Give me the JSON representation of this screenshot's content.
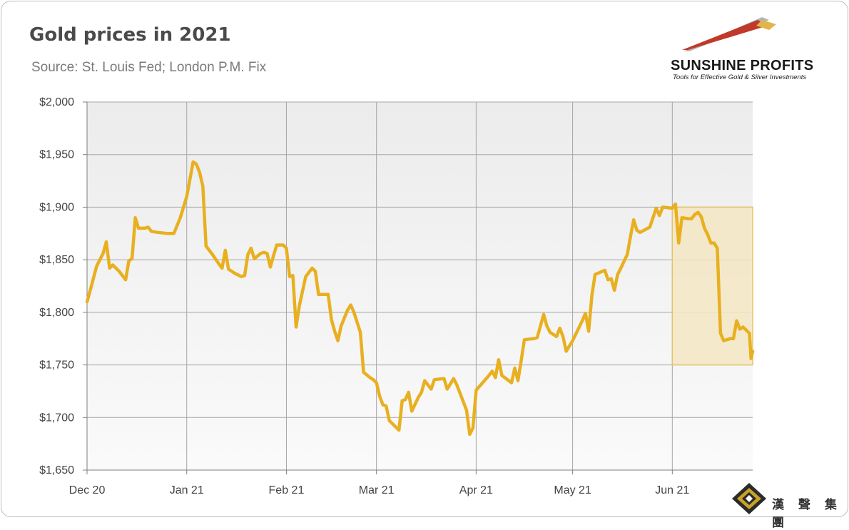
{
  "title": "Gold prices in 2021",
  "subtitle": "Source: St. Louis Fed; London P.M. Fix",
  "logo": {
    "name": "SUNSHINE PROFITS",
    "tagline": "Tools for Effective Gold & Silver Investments"
  },
  "watermark": {
    "text": "漢 聲 集 團"
  },
  "colors": {
    "line": "#e8b020",
    "highlight_fill": "#f5e6c4",
    "highlight_border": "#e3c46a",
    "plot_bg_top": "#ececec",
    "plot_bg_bottom": "#fafafa",
    "grid": "#a6a6a6"
  },
  "chart_data": {
    "type": "line",
    "x_unit": "days since Dec 1, 2020",
    "y_axis": {
      "range": [
        1650,
        2000
      ],
      "step": 50,
      "tick_labels": [
        "$1,650",
        "$1,700",
        "$1,750",
        "$1,800",
        "$1,850",
        "$1,900",
        "$1,950",
        "$2,000"
      ]
    },
    "x_axis": {
      "range": [
        1,
        208
      ],
      "ticks": [
        {
          "label": "Dec 20",
          "day": 1
        },
        {
          "label": "Jan 21",
          "day": 32
        },
        {
          "label": "Feb 21",
          "day": 63
        },
        {
          "label": "Mar 21",
          "day": 91
        },
        {
          "label": "Apr 21",
          "day": 122
        },
        {
          "label": "May 21",
          "day": 152
        },
        {
          "label": "Jun 21",
          "day": 183
        }
      ]
    },
    "grid": true,
    "highlight": {
      "x_start": 183,
      "x_end": 208,
      "y_start": 1750,
      "y_end": 1900
    },
    "series": [
      {
        "values": [
          [
            1,
            1810
          ],
          [
            2,
            1821
          ],
          [
            4,
            1844
          ],
          [
            6,
            1856
          ],
          [
            7,
            1867
          ],
          [
            8,
            1842
          ],
          [
            9,
            1845
          ],
          [
            11,
            1839
          ],
          [
            13,
            1831
          ],
          [
            14,
            1849
          ],
          [
            15,
            1851
          ],
          [
            16,
            1890
          ],
          [
            17,
            1880
          ],
          [
            19,
            1880
          ],
          [
            20,
            1881
          ],
          [
            21,
            1877
          ],
          [
            23,
            1876
          ],
          [
            26,
            1875
          ],
          [
            28,
            1875
          ],
          [
            30,
            1890
          ],
          [
            32,
            1910
          ],
          [
            34,
            1943
          ],
          [
            35,
            1941
          ],
          [
            36,
            1933
          ],
          [
            37,
            1920
          ],
          [
            38,
            1863
          ],
          [
            40,
            1855
          ],
          [
            42,
            1846
          ],
          [
            43,
            1842
          ],
          [
            44,
            1859
          ],
          [
            45,
            1841
          ],
          [
            47,
            1837
          ],
          [
            49,
            1834
          ],
          [
            50,
            1835
          ],
          [
            51,
            1855
          ],
          [
            52,
            1861
          ],
          [
            53,
            1851
          ],
          [
            55,
            1856
          ],
          [
            56,
            1857
          ],
          [
            57,
            1856
          ],
          [
            58,
            1843
          ],
          [
            59,
            1854
          ],
          [
            60,
            1864
          ],
          [
            62,
            1864
          ],
          [
            63,
            1861
          ],
          [
            64,
            1834
          ],
          [
            65,
            1835
          ],
          [
            66,
            1786
          ],
          [
            67,
            1806
          ],
          [
            69,
            1834
          ],
          [
            71,
            1842
          ],
          [
            72,
            1839
          ],
          [
            73,
            1817
          ],
          [
            76,
            1817
          ],
          [
            77,
            1793
          ],
          [
            78,
            1782
          ],
          [
            79,
            1773
          ],
          [
            80,
            1787
          ],
          [
            82,
            1802
          ],
          [
            83,
            1807
          ],
          [
            84,
            1800
          ],
          [
            86,
            1781
          ],
          [
            87,
            1743
          ],
          [
            89,
            1738
          ],
          [
            90,
            1736
          ],
          [
            91,
            1733
          ],
          [
            92,
            1720
          ],
          [
            93,
            1712
          ],
          [
            94,
            1711
          ],
          [
            95,
            1697
          ],
          [
            97,
            1691
          ],
          [
            98,
            1688
          ],
          [
            99,
            1716
          ],
          [
            100,
            1717
          ],
          [
            101,
            1724
          ],
          [
            102,
            1706
          ],
          [
            104,
            1719
          ],
          [
            105,
            1724
          ],
          [
            106,
            1735
          ],
          [
            108,
            1727
          ],
          [
            109,
            1736
          ],
          [
            112,
            1737
          ],
          [
            113,
            1727
          ],
          [
            115,
            1737
          ],
          [
            116,
            1731
          ],
          [
            119,
            1707
          ],
          [
            120,
            1684
          ],
          [
            121,
            1690
          ],
          [
            122,
            1726
          ],
          [
            124,
            1733
          ],
          [
            126,
            1740
          ],
          [
            127,
            1744
          ],
          [
            128,
            1738
          ],
          [
            129,
            1755
          ],
          [
            130,
            1740
          ],
          [
            133,
            1733
          ],
          [
            134,
            1747
          ],
          [
            135,
            1735
          ],
          [
            136,
            1754
          ],
          [
            137,
            1774
          ],
          [
            140,
            1775
          ],
          [
            141,
            1776
          ],
          [
            143,
            1798
          ],
          [
            144,
            1787
          ],
          [
            145,
            1781
          ],
          [
            147,
            1777
          ],
          [
            148,
            1785
          ],
          [
            149,
            1777
          ],
          [
            150,
            1763
          ],
          [
            151,
            1768
          ],
          [
            152,
            1773
          ],
          [
            155,
            1792
          ],
          [
            156,
            1799
          ],
          [
            157,
            1782
          ],
          [
            158,
            1816
          ],
          [
            159,
            1836
          ],
          [
            162,
            1840
          ],
          [
            163,
            1831
          ],
          [
            164,
            1832
          ],
          [
            165,
            1821
          ],
          [
            166,
            1836
          ],
          [
            167,
            1842
          ],
          [
            169,
            1855
          ],
          [
            170,
            1872
          ],
          [
            171,
            1888
          ],
          [
            172,
            1878
          ],
          [
            173,
            1876
          ],
          [
            176,
            1881
          ],
          [
            178,
            1899
          ],
          [
            179,
            1892
          ],
          [
            180,
            1900
          ],
          [
            183,
            1899
          ],
          [
            184,
            1903
          ],
          [
            185,
            1866
          ],
          [
            186,
            1890
          ],
          [
            188,
            1889
          ],
          [
            189,
            1889
          ],
          [
            190,
            1893
          ],
          [
            191,
            1895
          ],
          [
            192,
            1891
          ],
          [
            193,
            1880
          ],
          [
            194,
            1874
          ],
          [
            195,
            1866
          ],
          [
            196,
            1866
          ],
          [
            197,
            1861
          ],
          [
            198,
            1780
          ],
          [
            199,
            1773
          ],
          [
            201,
            1775
          ],
          [
            202,
            1775
          ],
          [
            203,
            1792
          ],
          [
            204,
            1784
          ],
          [
            205,
            1786
          ],
          [
            206,
            1783
          ],
          [
            207,
            1780
          ],
          [
            207.5,
            1756
          ],
          [
            208,
            1763
          ]
        ]
      }
    ]
  }
}
